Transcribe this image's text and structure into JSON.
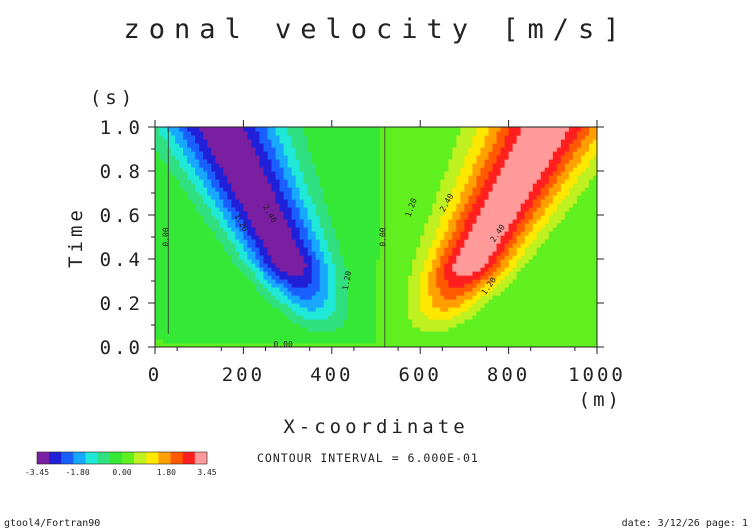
{
  "chart_data": {
    "type": "heatmap",
    "title": "zonal velocity [m/s]",
    "xlabel": "X-coordinate",
    "xunit": "(m)",
    "ylabel": "Time",
    "yunit": "(s)",
    "xlim": [
      0,
      1000
    ],
    "ylim": [
      0.0,
      1.0
    ],
    "x_ticks": [
      0,
      200,
      400,
      600,
      800,
      1000
    ],
    "x_tick_labels": [
      "0",
      "200",
      "400",
      "600",
      "800",
      "1000"
    ],
    "y_ticks": [
      0.0,
      0.2,
      0.4,
      0.6,
      0.8,
      1.0
    ],
    "y_tick_labels": [
      "0.0",
      "0.2",
      "0.4",
      "0.6",
      "0.8",
      "1.0"
    ],
    "contour_interval_text": "CONTOUR INTERVAL = 6.000E-01",
    "contour_labels": [
      {
        "text": "0.00",
        "x": 30,
        "t": 0.5,
        "angle": -90
      },
      {
        "text": "1.20",
        "x": 190,
        "t": 0.56,
        "angle": 60
      },
      {
        "text": "2.40",
        "x": 255,
        "t": 0.6,
        "angle": 60
      },
      {
        "text": "1.20",
        "x": 440,
        "t": 0.3,
        "angle": -80
      },
      {
        "text": "0.00",
        "x": 290,
        "t": 0.0,
        "angle": 0
      },
      {
        "text": "0.00",
        "x": 522,
        "t": 0.5,
        "angle": -90
      },
      {
        "text": "1.20",
        "x": 585,
        "t": 0.63,
        "angle": -70
      },
      {
        "text": "2.40",
        "x": 665,
        "t": 0.65,
        "angle": -60
      },
      {
        "text": "2.40",
        "x": 780,
        "t": 0.51,
        "angle": -55
      },
      {
        "text": "1.20",
        "x": 760,
        "t": 0.27,
        "angle": -55
      }
    ],
    "field": {
      "negative_lobe": {
        "amplitude": -3.45,
        "center_x0": 200,
        "center_x1": 380,
        "slope_x_per_t": 230,
        "width": 115
      },
      "positive_lobe": {
        "amplitude": 3.45,
        "center_x0": 620,
        "center_x1": 660,
        "slope_x_per_t": 300,
        "width": 120
      },
      "front_x": 520
    },
    "colorbar": {
      "levels": [
        -3.45,
        -1.8,
        0.0,
        1.8,
        3.45
      ],
      "tick_labels": [
        "-3.45",
        "-1.80",
        "0.00",
        "1.80",
        "3.45"
      ],
      "colors": [
        "#7a1fa2",
        "#2020d8",
        "#1a60ff",
        "#18a8ff",
        "#20e8d8",
        "#30e080",
        "#36e836",
        "#60f020",
        "#bff020",
        "#ffe800",
        "#ffa000",
        "#ff5a00",
        "#ff1f1f",
        "#ff9a9a"
      ]
    }
  },
  "footer": {
    "left": "gtool4/Fortran90",
    "right": "date: 3/12/26 page: 1"
  }
}
